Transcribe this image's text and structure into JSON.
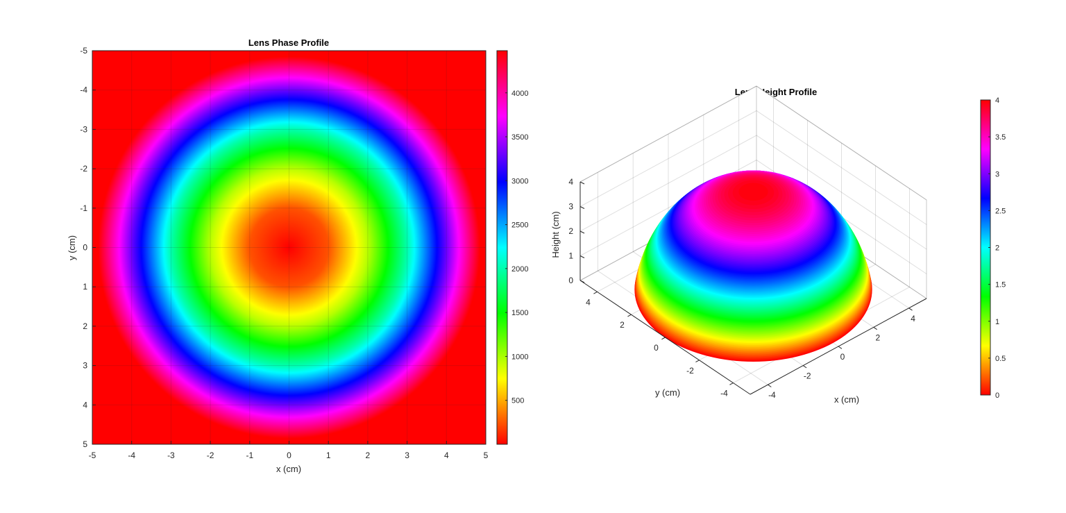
{
  "chart_data": [
    {
      "type": "heatmap",
      "title": "Lens Phase Profile",
      "xlabel": "x (cm)",
      "ylabel": "y (cm)",
      "xlim": [
        -5,
        5
      ],
      "ylim": [
        -5,
        5
      ],
      "y_direction": "reversed",
      "x_ticks": [
        "-5",
        "-4",
        "-3",
        "-2",
        "-1",
        "0",
        "1",
        "2",
        "3",
        "4",
        "5"
      ],
      "y_ticks": [
        "-5",
        "-4",
        "-3",
        "-2",
        "-1",
        "0",
        "1",
        "2",
        "3",
        "4",
        "5"
      ],
      "grid": true,
      "colormap": "hsv",
      "field": {
        "shape": "radial",
        "center": [
          0,
          0
        ],
        "aperture_radius": 4.85,
        "value_at_center": 0,
        "value_at_edge": 4480,
        "value_outside_aperture": 0
      },
      "radial_profile": [
        {
          "r": 0,
          "value": 0
        },
        {
          "r": 1,
          "value": 240
        },
        {
          "r": 2,
          "value": 950
        },
        {
          "r": 3,
          "value": 2000
        },
        {
          "r": 4,
          "value": 3300
        },
        {
          "r": 4.85,
          "value": 4480
        }
      ],
      "colorbar": {
        "range": [
          0,
          4480
        ],
        "ticks": [
          "500",
          "1000",
          "1500",
          "2000",
          "2500",
          "3000",
          "3500",
          "4000"
        ]
      }
    },
    {
      "type": "surface",
      "title": "Lens Height Profile",
      "xlabel": "x (cm)",
      "ylabel": "y (cm)",
      "zlabel": "Height (cm)",
      "xlim": [
        -5,
        5
      ],
      "ylim": [
        -5,
        5
      ],
      "zlim": [
        0,
        4
      ],
      "x_ticks": [
        "-4",
        "-2",
        "0",
        "2",
        "4"
      ],
      "y_ticks": [
        "-4",
        "-2",
        "0",
        "2",
        "4"
      ],
      "z_ticks": [
        "0",
        "1",
        "2",
        "3",
        "4"
      ],
      "grid": true,
      "colormap": "hsv",
      "surface": {
        "shape": "spherical cap",
        "base_radius": 4.85,
        "peak_height": 4.0
      },
      "colorbar": {
        "range": [
          0,
          4
        ],
        "ticks": [
          "0",
          "0.5",
          "1",
          "1.5",
          "2",
          "2.5",
          "3",
          "3.5",
          "4"
        ]
      }
    }
  ]
}
